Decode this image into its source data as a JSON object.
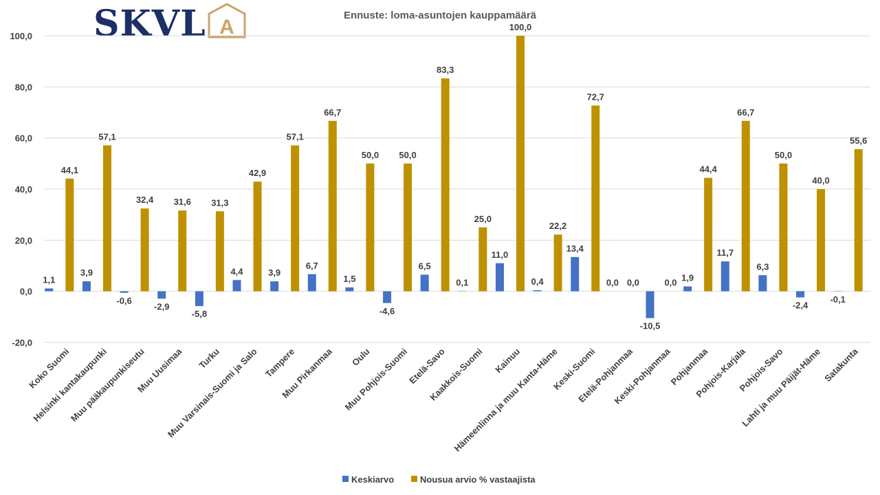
{
  "logo": {
    "text": "SKVL",
    "letter": "A",
    "navy": "#1c2f66",
    "gold": "#c9a56a"
  },
  "chart_data": {
    "type": "bar",
    "title": "Ennuste: loma-asuntojen kauppamäärä",
    "xlabel": "",
    "ylabel": "",
    "ylim": [
      -20,
      100
    ],
    "ytick_step": 20,
    "grid": true,
    "legend_position": "bottom",
    "categories": [
      "Koko Suomi",
      "Helsinki kantakaupunki",
      "Muu pääkaupunkiseutu",
      "Muu Uusimaa",
      "Turku",
      "Muu Varsinais-Suomi ja Salo",
      "Tampere",
      "Muu Pirkanmaa",
      "Oulu",
      "Muu Pohjois-Suomi",
      "Etelä-Savo",
      "Kaakkois-Suomi",
      "Kainuu",
      "Hämeenlinna ja muu Kanta-Häme",
      "Keski-Suomi",
      "Etelä-Pohjanmaa",
      "Keski-Pohjanmaa",
      "Pohjanmaa",
      "Pohjois-Karjala",
      "Pohjois-Savo",
      "Lahti ja muu Päijät-Häme",
      "Satakunta"
    ],
    "series": [
      {
        "name": "Keskiarvo",
        "color": "#4472c4",
        "values": [
          1.1,
          3.9,
          -0.6,
          -2.9,
          -5.8,
          4.4,
          3.9,
          6.7,
          1.5,
          -4.6,
          6.5,
          0.1,
          11.0,
          0.4,
          13.4,
          0.0,
          -10.5,
          1.9,
          11.7,
          6.3,
          -2.4,
          -0.1
        ]
      },
      {
        "name": "Nousua arvio % vastaajista",
        "color": "#bf9000",
        "values": [
          44.1,
          57.1,
          32.4,
          31.6,
          31.3,
          42.9,
          57.1,
          66.7,
          50.0,
          50.0,
          83.3,
          25.0,
          100.0,
          22.2,
          72.7,
          0.0,
          0.0,
          44.4,
          66.7,
          50.0,
          40.0,
          55.6
        ]
      }
    ]
  }
}
